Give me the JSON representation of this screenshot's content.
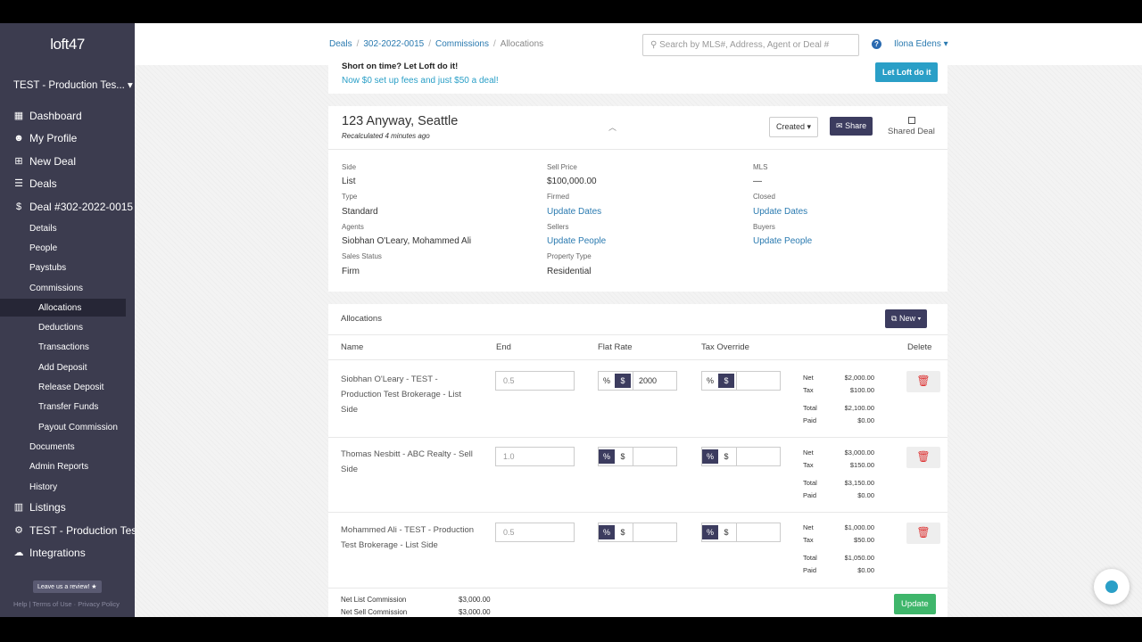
{
  "app": {
    "logo": "loft47",
    "org": "TEST - Production Tes..."
  },
  "sidebar": {
    "main_items": [
      {
        "label": "Dashboard",
        "icon": "dashboard-icon"
      },
      {
        "label": "My Profile",
        "icon": "profile-icon"
      },
      {
        "label": "New Deal",
        "icon": "plus-icon"
      },
      {
        "label": "Deals",
        "icon": "list-icon"
      },
      {
        "label": "Deal #302-2022-0015",
        "icon": "dollar-icon"
      }
    ],
    "deal_sub": [
      "Details",
      "People",
      "Paystubs",
      "Commissions"
    ],
    "commission_sub": [
      "Allocations",
      "Deductions",
      "Transactions",
      "Add Deposit",
      "Release Deposit",
      "Transfer Funds",
      "Payout Commission"
    ],
    "deal_sub2": [
      "Documents",
      "Admin Reports",
      "History"
    ],
    "bottom_items": [
      {
        "label": "Listings",
        "icon": "building-icon"
      },
      {
        "label": "TEST - Production Test",
        "icon": "gear-icon"
      },
      {
        "label": "Integrations",
        "icon": "cloud-icon"
      }
    ],
    "review_label": "Leave us a review! ★",
    "footer": "Help | Terms of Use · Privacy Policy"
  },
  "topbar": {
    "breadcrumbs": [
      "Deals",
      "302-2022-0015",
      "Commissions",
      "Allocations"
    ],
    "search_placeholder": "Search by MLS#, Address, Agent or Deal #",
    "user": "Ilona Edens"
  },
  "promo": {
    "line1": "Short on time? Let Loft do it!",
    "line2": "Now $0 set up fees and just $50 a deal!",
    "button": "Let Loft do it"
  },
  "deal": {
    "title": "123 Anyway, Seattle",
    "recalc": "Recalculated 4 minutes ago",
    "status_button": "Created",
    "share_button": "Share",
    "shared_label": "Shared Deal",
    "fields": {
      "side_label": "Side",
      "side": "List",
      "type_label": "Type",
      "type": "Standard",
      "agents_label": "Agents",
      "agents": "Siobhan O'Leary, Mohammed Ali",
      "sales_status_label": "Sales Status",
      "sales_status": "Firm",
      "sell_price_label": "Sell Price",
      "sell_price": "$100,000.00",
      "firmed_label": "Firmed",
      "firmed": "Update Dates",
      "sellers_label": "Sellers",
      "sellers": "Update People",
      "property_type_label": "Property Type",
      "property_type": "Residential",
      "mls_label": "MLS",
      "mls": "—",
      "closed_label": "Closed",
      "closed": "Update Dates",
      "buyers_label": "Buyers",
      "buyers": "Update People"
    }
  },
  "allocations": {
    "title": "Allocations",
    "new_button": "New",
    "headers": {
      "name": "Name",
      "end": "End",
      "flat_rate": "Flat Rate",
      "tax_override": "Tax Override",
      "delete": "Delete"
    },
    "rows": [
      {
        "name": "Siobhan O'Leary - TEST - Production Test Brokerage - List Side",
        "end": "0.5",
        "flat_mode": "$",
        "flat_value": "2000",
        "tax_mode": "$",
        "net": "$2,000.00",
        "tax": "$100.00",
        "total": "$2,100.00",
        "paid": "$0.00"
      },
      {
        "name": "Thomas Nesbitt - ABC Realty - Sell Side",
        "end": "1.0",
        "flat_mode": "%",
        "flat_value": "",
        "tax_mode": "%",
        "net": "$3,000.00",
        "tax": "$150.00",
        "total": "$3,150.00",
        "paid": "$0.00"
      },
      {
        "name": "Mohammed Ali - TEST - Production Test Brokerage - List Side",
        "end": "0.5",
        "flat_mode": "%",
        "flat_value": "",
        "tax_mode": "%",
        "net": "$1,000.00",
        "tax": "$50.00",
        "total": "$1,050.00",
        "paid": "$0.00"
      }
    ],
    "summary_labels": {
      "net": "Net",
      "tax": "Tax",
      "total": "Total",
      "paid": "Paid"
    },
    "footer": {
      "net_list_label": "Net List Commission",
      "net_list": "$3,000.00",
      "net_sell_label": "Net Sell Commission",
      "net_sell": "$3,000.00"
    },
    "update_button": "Update"
  }
}
